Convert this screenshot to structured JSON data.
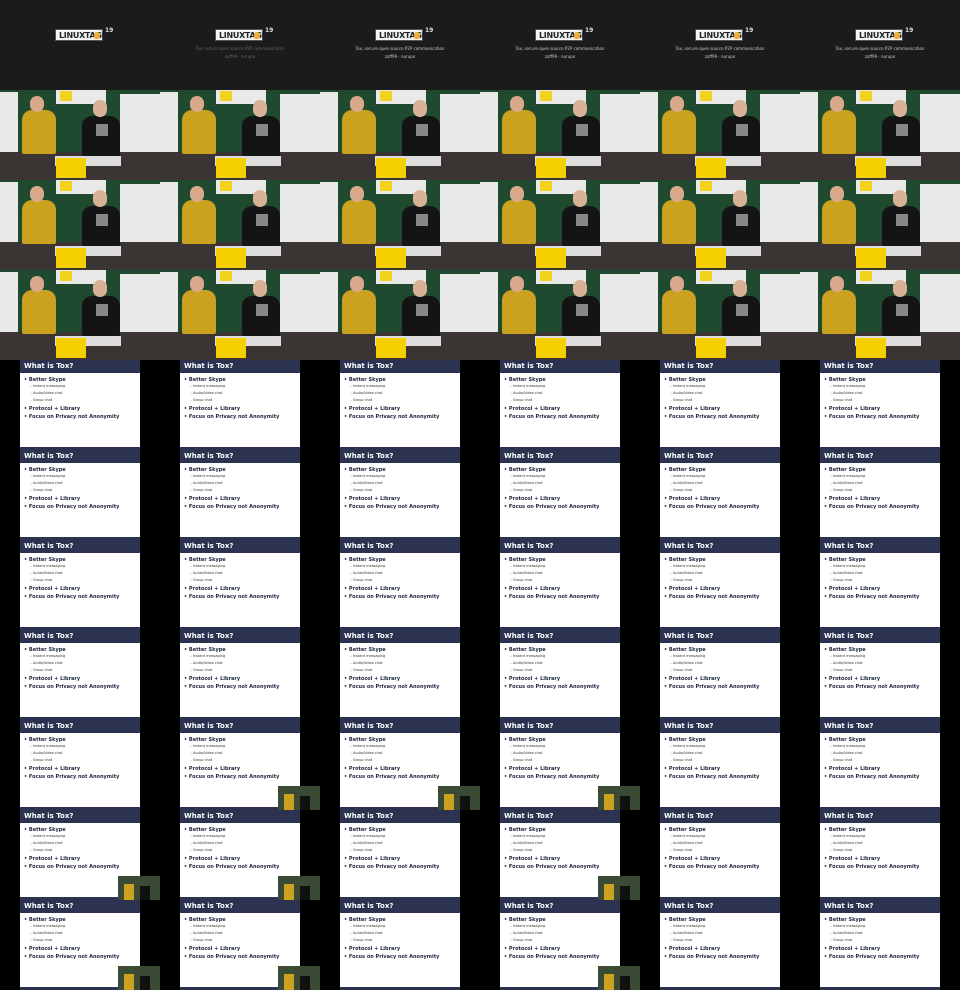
{
  "contact_sheet": {
    "columns": 6,
    "rows": 11,
    "title_card": {
      "logo": "LINUXTAGE",
      "year": "19",
      "title": "Tox, secure open source P2P communication",
      "authors": "zoff99 · nurupo"
    },
    "slide": {
      "heading": "What is Tox?",
      "bullets": [
        {
          "text": "Better Skype",
          "sub": [
            "Instant messaging",
            "Audio/Video chat",
            "Group chat"
          ]
        },
        {
          "text": "Protocol + Library",
          "sub": []
        },
        {
          "text": "Focus on Privacy not Anonymity",
          "sub": []
        }
      ]
    },
    "pip_frames": [
      25,
      26,
      27,
      30,
      31,
      33,
      36,
      37,
      39
    ]
  }
}
